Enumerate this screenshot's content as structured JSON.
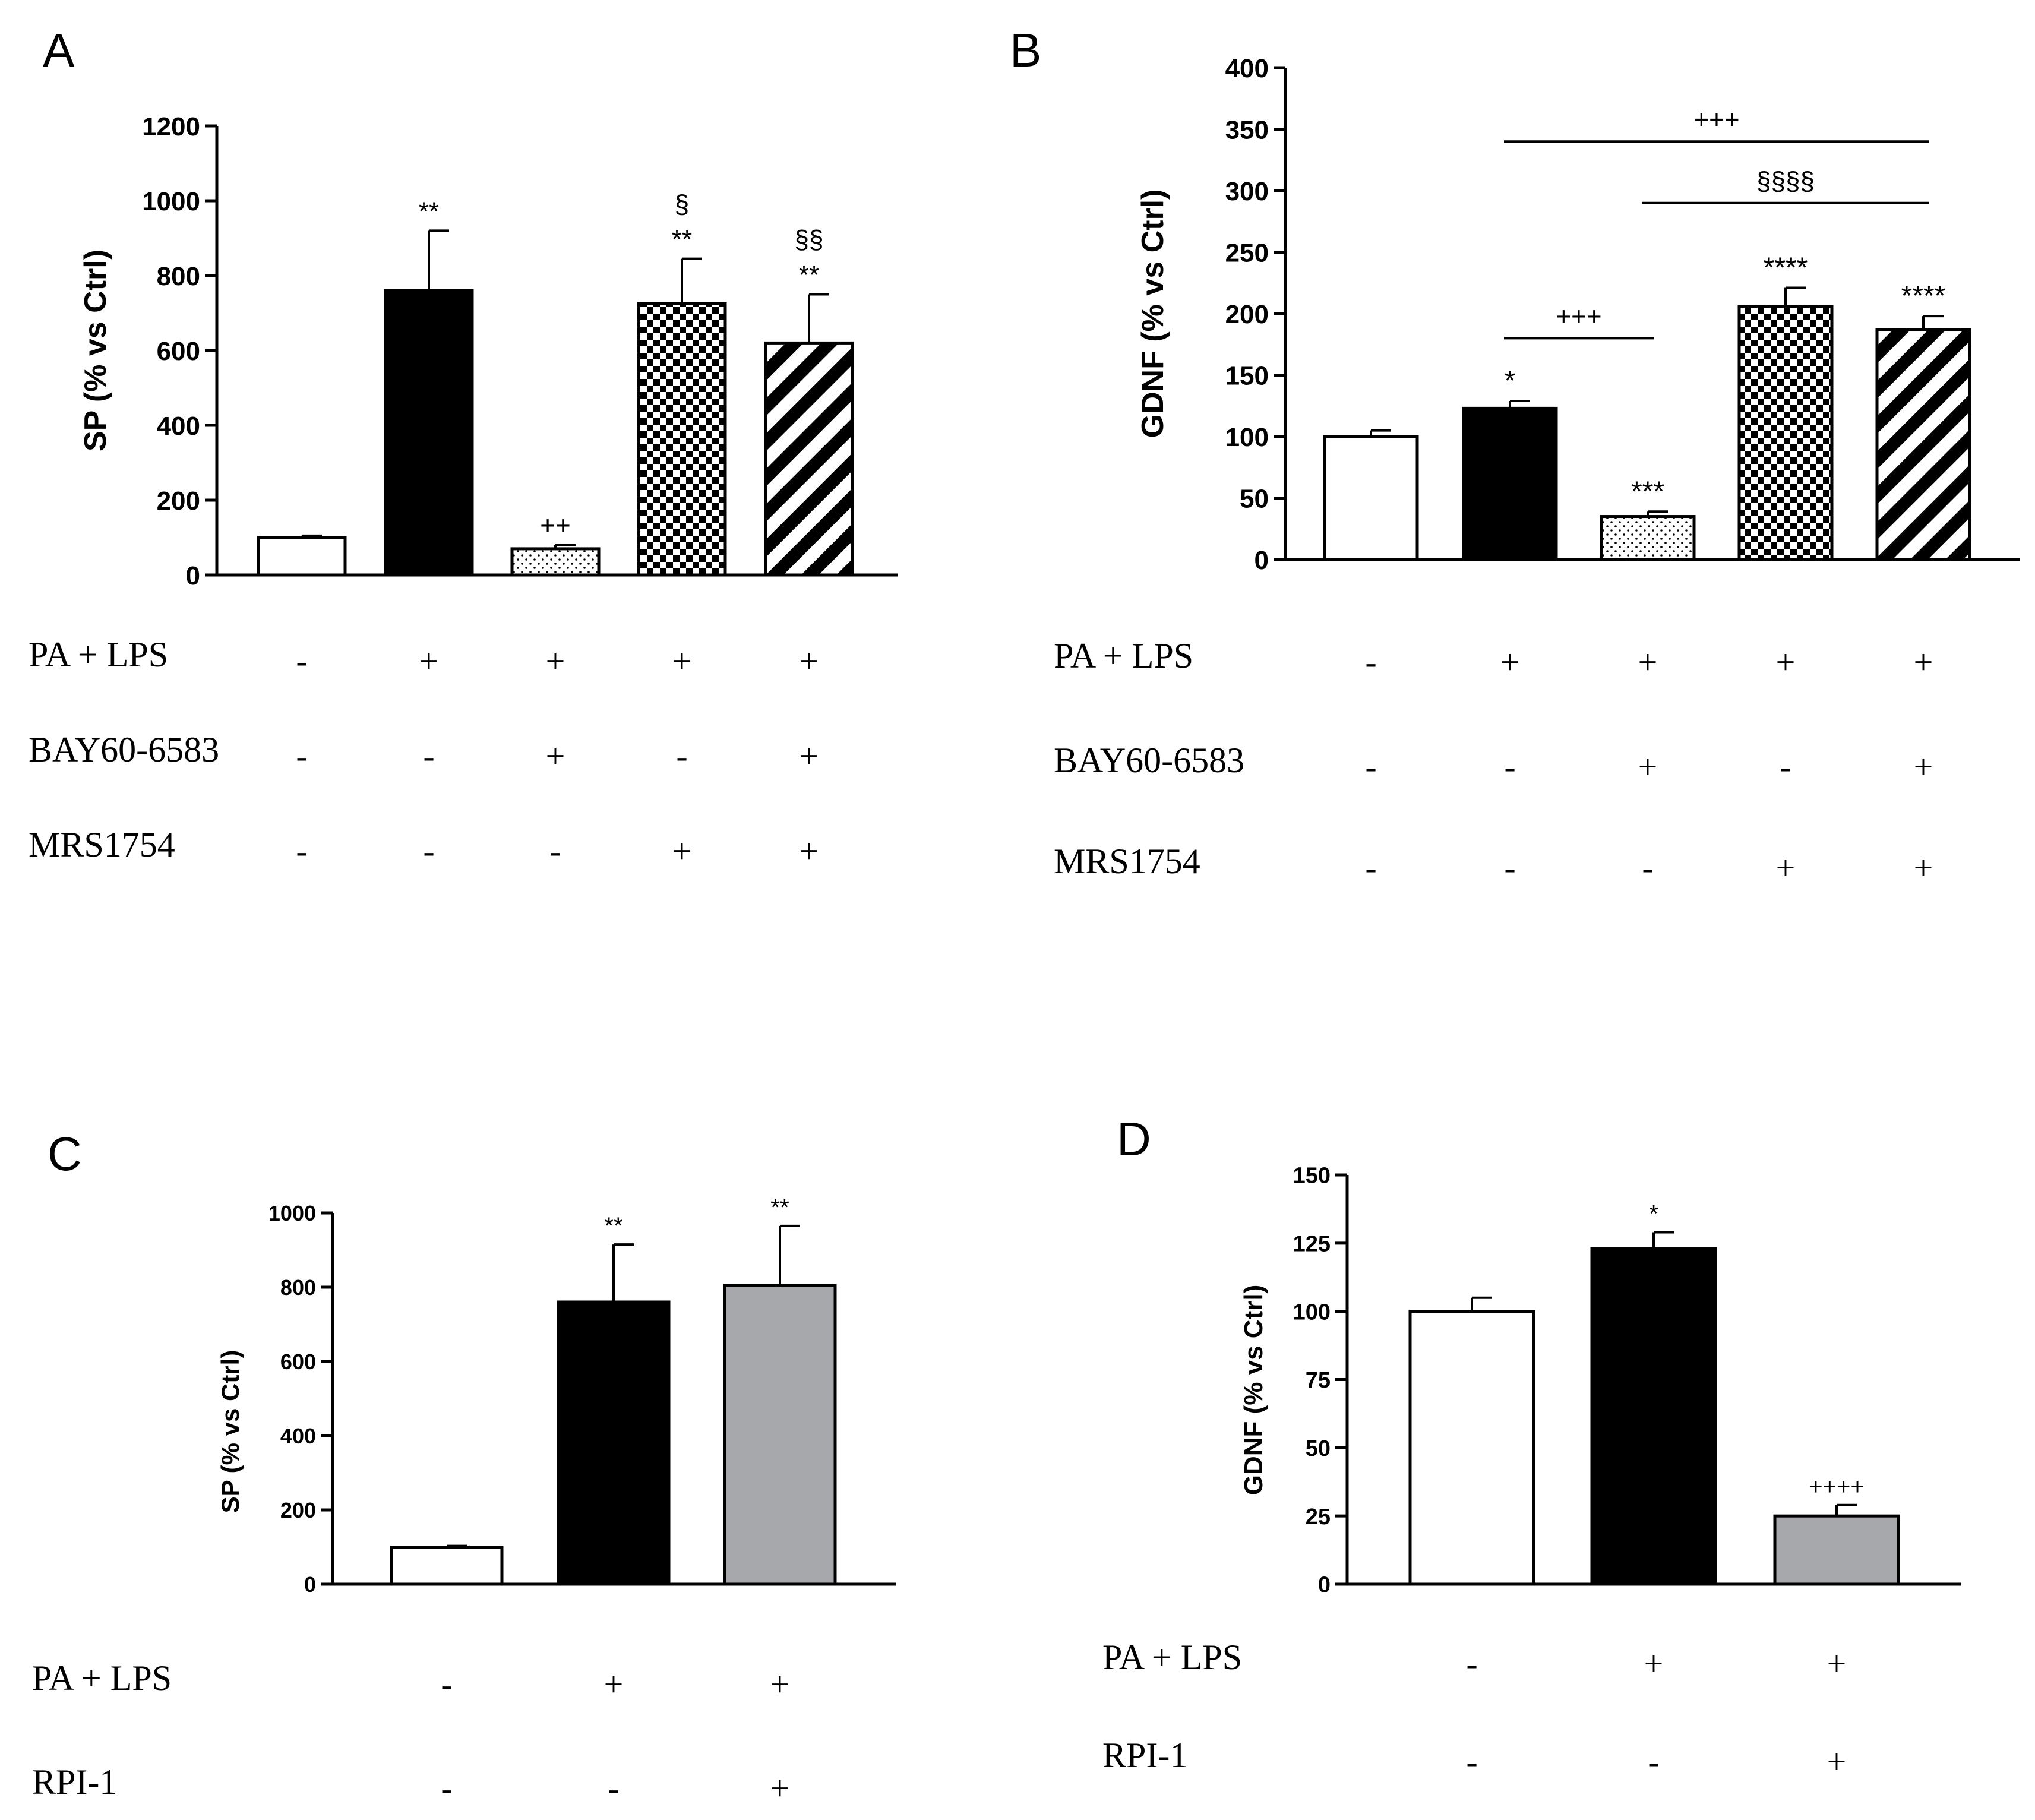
{
  "chart_data": [
    {
      "panel": "A",
      "type": "bar",
      "ylabel": "SP (% vs Ctrl)",
      "ylim": [
        0,
        1200
      ],
      "yticks": [
        "0",
        "200",
        "400",
        "600",
        "800",
        "1000",
        "1200"
      ],
      "values": [
        100,
        760,
        70,
        725,
        620
      ],
      "errors": [
        5,
        160,
        10,
        120,
        130
      ],
      "patterns": [
        "white",
        "black",
        "dots",
        "checker",
        "stripes"
      ],
      "annotations": [
        [
          ""
        ],
        [
          "**"
        ],
        [
          "++"
        ],
        [
          "**",
          "§"
        ],
        [
          "**",
          "§§"
        ]
      ],
      "conditions": [
        {
          "label": "PA + LPS",
          "signs": [
            "-",
            "+",
            "+",
            "+",
            "+"
          ]
        },
        {
          "label": "BAY60-6583",
          "signs": [
            "-",
            "-",
            "+",
            "-",
            "+"
          ]
        },
        {
          "label": "MRS1754",
          "signs": [
            "-",
            "-",
            "-",
            "+",
            "+"
          ]
        }
      ],
      "brackets": []
    },
    {
      "panel": "B",
      "type": "bar",
      "ylabel": "GDNF (% vs Ctrl)",
      "ylim": [
        0,
        400
      ],
      "yticks": [
        "0",
        "50",
        "100",
        "150",
        "200",
        "250",
        "300",
        "350",
        "400"
      ],
      "values": [
        100,
        123,
        35,
        206,
        187
      ],
      "errors": [
        5,
        6,
        4,
        15,
        11
      ],
      "patterns": [
        "white",
        "black",
        "dots",
        "checker",
        "stripes"
      ],
      "annotations": [
        [
          ""
        ],
        [
          "*"
        ],
        [
          "***"
        ],
        [
          "****"
        ],
        [
          "****"
        ]
      ],
      "conditions": [
        {
          "label": "PA + LPS",
          "signs": [
            "-",
            "+",
            "+",
            "+",
            "+"
          ]
        },
        {
          "label": "BAY60-6583",
          "signs": [
            "-",
            "-",
            "+",
            "-",
            "+"
          ]
        },
        {
          "label": "MRS1754",
          "signs": [
            "-",
            "-",
            "-",
            "+",
            "+"
          ]
        }
      ],
      "brackets": [
        {
          "from": 1,
          "to": 2,
          "y": 180,
          "label": "+++"
        },
        {
          "from": 1,
          "to": 4,
          "y": 340,
          "label": "+++"
        },
        {
          "from": 2,
          "to": 4,
          "y": 290,
          "label": "§§§§"
        }
      ]
    },
    {
      "panel": "C",
      "type": "bar",
      "ylabel": "SP (% vs Ctrl)",
      "ylim": [
        0,
        1000
      ],
      "yticks": [
        "0",
        "200",
        "400",
        "600",
        "800",
        "1000"
      ],
      "values": [
        100,
        760,
        805
      ],
      "errors": [
        3,
        155,
        160
      ],
      "patterns": [
        "white",
        "black",
        "gray"
      ],
      "annotations": [
        [
          ""
        ],
        [
          "**"
        ],
        [
          "**"
        ]
      ],
      "conditions": [
        {
          "label": "PA + LPS",
          "signs": [
            "-",
            "+",
            "+"
          ]
        },
        {
          "label": "RPI-1",
          "signs": [
            "-",
            "-",
            "+"
          ]
        }
      ],
      "brackets": []
    },
    {
      "panel": "D",
      "type": "bar",
      "ylabel": "GDNF (% vs Ctrl)",
      "ylim": [
        0,
        150
      ],
      "yticks": [
        "0",
        "25",
        "50",
        "75",
        "100",
        "125",
        "150"
      ],
      "values": [
        100,
        123,
        25
      ],
      "errors": [
        5,
        6,
        4
      ],
      "patterns": [
        "white",
        "black",
        "gray"
      ],
      "annotations": [
        [
          ""
        ],
        [
          "*"
        ],
        [
          "++++"
        ]
      ],
      "conditions": [
        {
          "label": "PA + LPS",
          "signs": [
            "-",
            "+",
            "+"
          ]
        },
        {
          "label": "RPI-1",
          "signs": [
            "-",
            "-",
            "+"
          ]
        }
      ],
      "brackets": []
    }
  ],
  "colors": {
    "black": "#000000",
    "gray": "#a6a8ab",
    "white": "#ffffff"
  }
}
